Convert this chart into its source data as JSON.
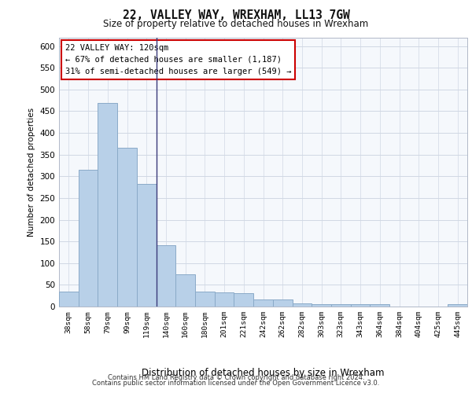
{
  "title": "22, VALLEY WAY, WREXHAM, LL13 7GW",
  "subtitle": "Size of property relative to detached houses in Wrexham",
  "xlabel": "Distribution of detached houses by size in Wrexham",
  "ylabel": "Number of detached properties",
  "categories": [
    "38sqm",
    "58sqm",
    "79sqm",
    "99sqm",
    "119sqm",
    "140sqm",
    "160sqm",
    "180sqm",
    "201sqm",
    "221sqm",
    "242sqm",
    "262sqm",
    "282sqm",
    "303sqm",
    "323sqm",
    "343sqm",
    "364sqm",
    "384sqm",
    "404sqm",
    "425sqm",
    "445sqm"
  ],
  "values": [
    34,
    315,
    468,
    365,
    283,
    141,
    75,
    35,
    32,
    30,
    17,
    17,
    8,
    5,
    5,
    5,
    5,
    0,
    0,
    0,
    6
  ],
  "bar_color": "#b8d0e8",
  "bar_edge_color": "#8aaac8",
  "marker_line_color": "#3a3a7a",
  "annotation_text": "22 VALLEY WAY: 120sqm\n← 67% of detached houses are smaller (1,187)\n31% of semi-detached houses are larger (549) →",
  "annotation_box_color": "#ffffff",
  "annotation_box_edge": "#cc0000",
  "ylim": [
    0,
    620
  ],
  "yticks": [
    0,
    50,
    100,
    150,
    200,
    250,
    300,
    350,
    400,
    450,
    500,
    550,
    600
  ],
  "footer_line1": "Contains HM Land Registry data © Crown copyright and database right 2024.",
  "footer_line2": "Contains public sector information licensed under the Open Government Licence v3.0.",
  "plot_bg_color": "#f5f8fc",
  "grid_color": "#d0d8e4"
}
